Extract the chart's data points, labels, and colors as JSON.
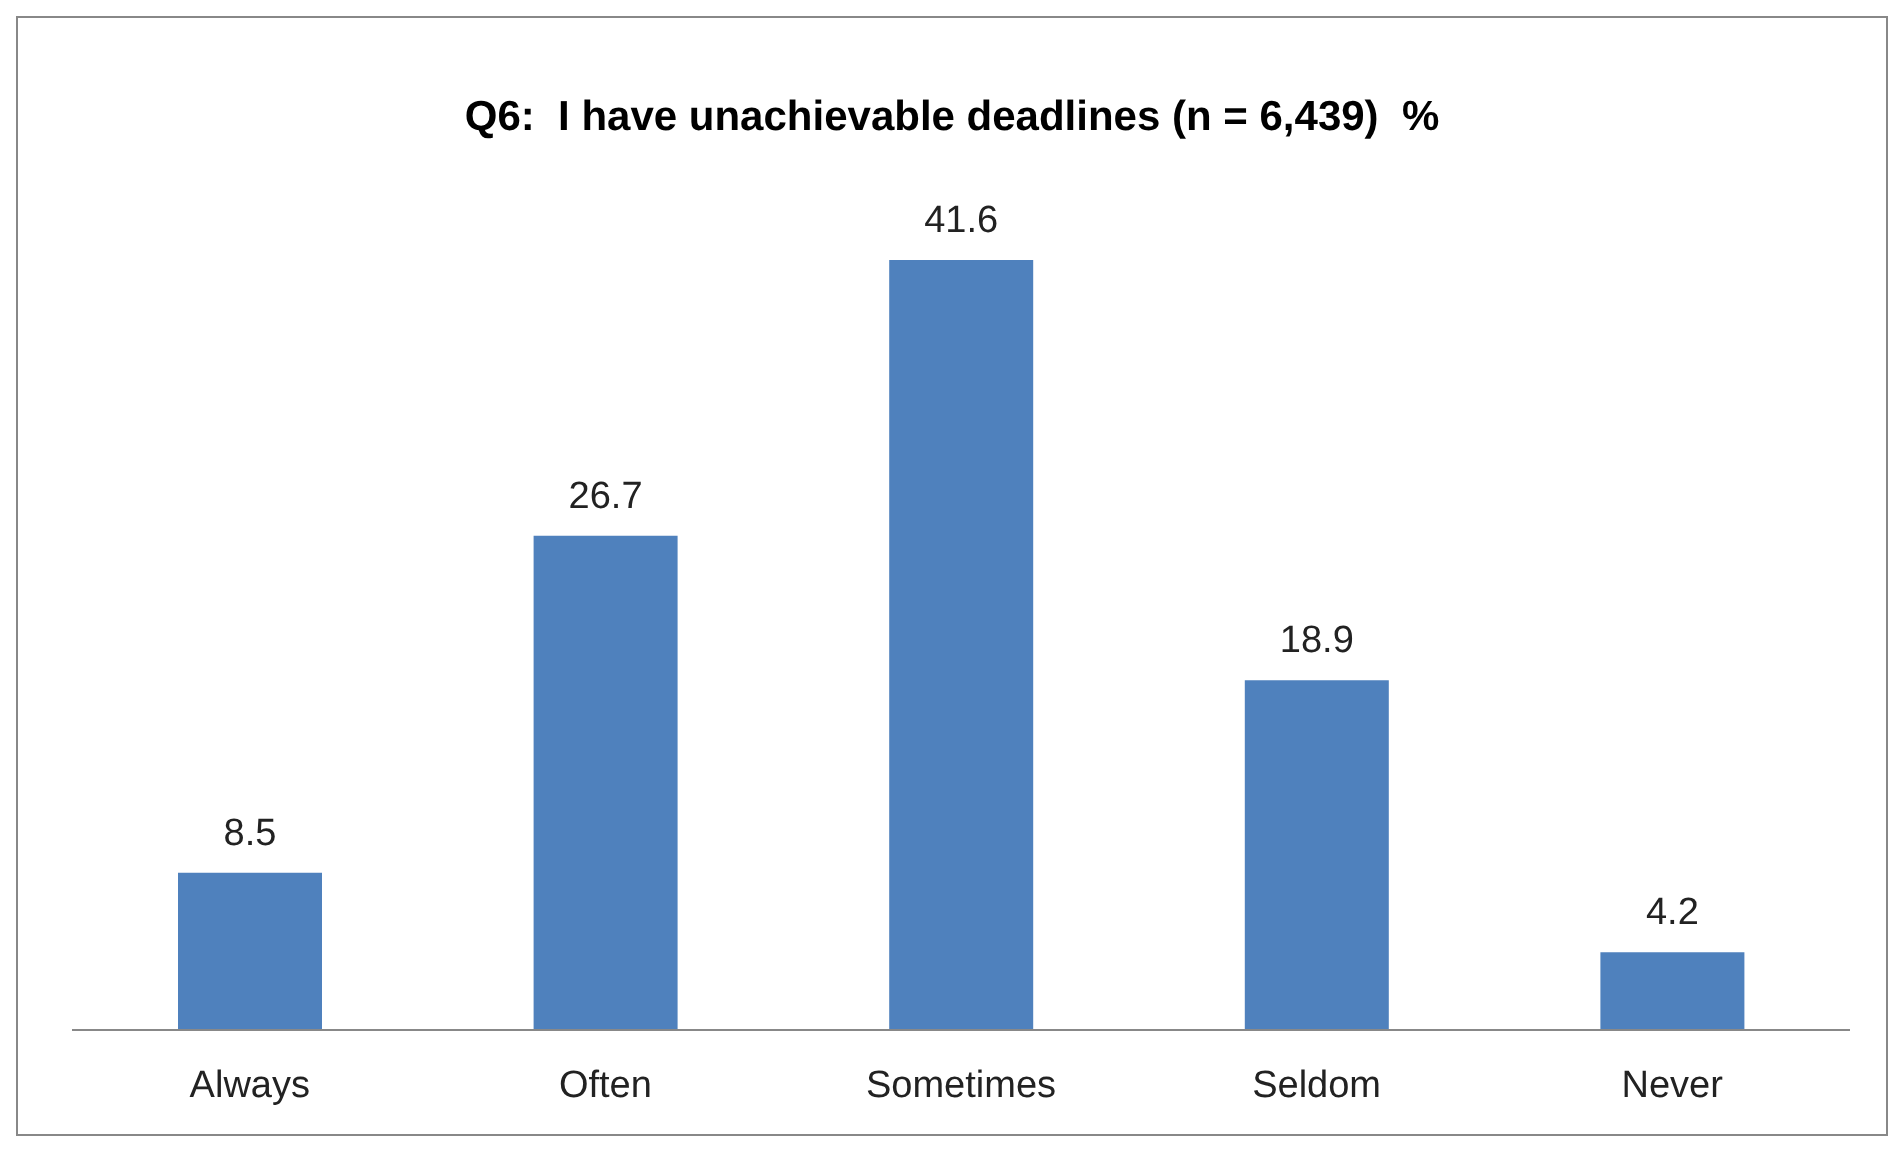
{
  "chart_data": {
    "type": "bar",
    "title": "Q6:  I have unachievable deadlines (n = 6,439)  %",
    "categories": [
      "Always",
      "Often",
      "Sometimes",
      "Seldom",
      "Never"
    ],
    "values": [
      8.5,
      26.7,
      41.6,
      18.9,
      4.2
    ],
    "color": "#4f81bd",
    "data_labels": true,
    "grid": false,
    "legend": false
  }
}
